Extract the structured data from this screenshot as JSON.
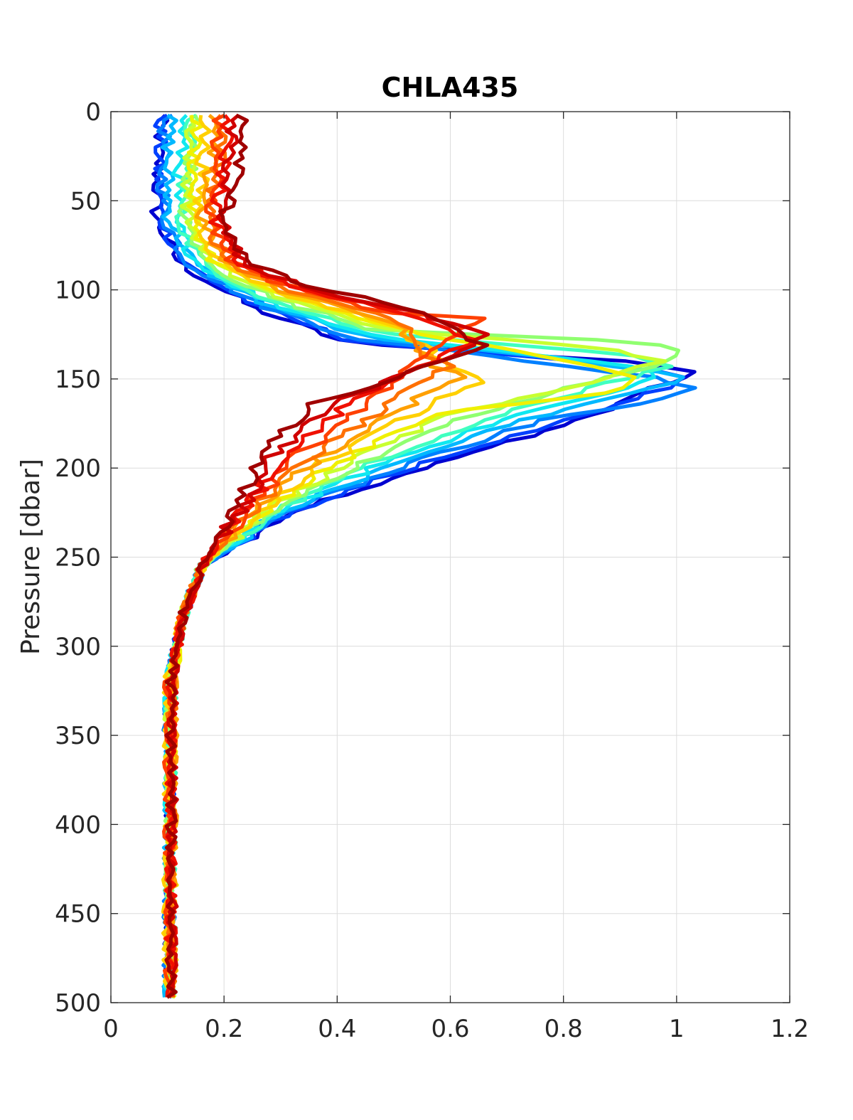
{
  "chart_data": {
    "type": "line",
    "title": "CHLA435",
    "xlabel": "",
    "ylabel": "Pressure [dbar]",
    "xlim": [
      0,
      1.2
    ],
    "ylim": [
      0,
      500
    ],
    "y_reversed": true,
    "grid": true,
    "legend": "none",
    "x_ticks": [
      "0",
      "0.2",
      "0.4",
      "0.6",
      "0.8",
      "1",
      "1.2"
    ],
    "y_ticks": [
      "0",
      "50",
      "100",
      "150",
      "200",
      "250",
      "300",
      "350",
      "400",
      "450",
      "500"
    ],
    "colormap": "jet",
    "series": [
      {
        "color": "#0000d0",
        "peak": {
          "x": 1.04,
          "y": 147
        }
      },
      {
        "color": "#0040ff",
        "peak": {
          "x": 1.03,
          "y": 150
        }
      },
      {
        "color": "#0080ff",
        "peak": {
          "x": 1.04,
          "y": 155
        }
      },
      {
        "color": "#00b8ff",
        "peak": {
          "x": 1.01,
          "y": 150
        }
      },
      {
        "color": "#10e8f0",
        "peak": {
          "x": 0.98,
          "y": 148
        }
      },
      {
        "color": "#40ffc0",
        "peak": {
          "x": 0.99,
          "y": 142
        }
      },
      {
        "color": "#90ff70",
        "peak": {
          "x": 1.03,
          "y": 135
        }
      },
      {
        "color": "#c8ff30",
        "peak": {
          "x": 0.97,
          "y": 140
        }
      },
      {
        "color": "#f0f000",
        "peak": {
          "x": 0.94,
          "y": 150
        }
      },
      {
        "color": "#ffd000",
        "peak": {
          "x": 0.66,
          "y": 150
        }
      },
      {
        "color": "#ffa000",
        "peak": {
          "x": 0.62,
          "y": 148
        }
      },
      {
        "color": "#ff7000",
        "peak": {
          "x": 0.6,
          "y": 143
        }
      },
      {
        "color": "#ff4000",
        "peak": {
          "x": 0.66,
          "y": 115
        }
      },
      {
        "color": "#f01000",
        "peak": {
          "x": 0.64,
          "y": 128
        }
      },
      {
        "color": "#d00000",
        "peak": {
          "x": 0.67,
          "y": 126
        }
      },
      {
        "color": "#a00000",
        "peak": {
          "x": 0.66,
          "y": 130
        }
      }
    ]
  }
}
